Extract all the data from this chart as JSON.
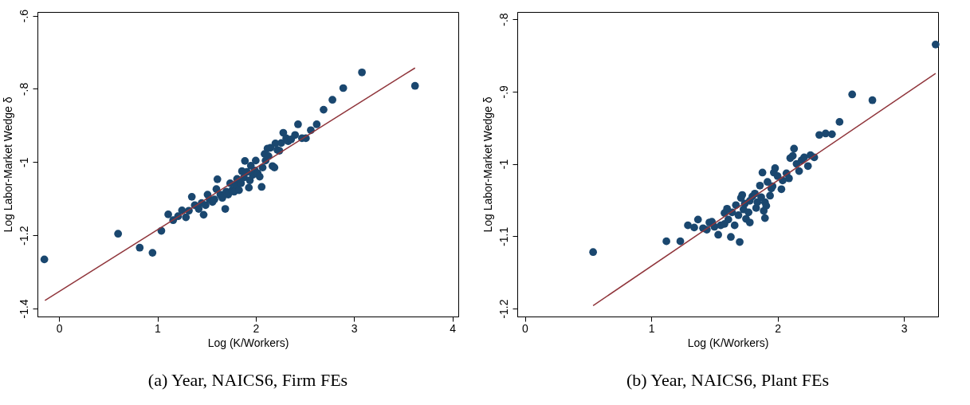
{
  "chart_data": [
    {
      "type": "scatter",
      "title": "(a) Year, NAICS6, Firm FEs",
      "xlabel": "Log (K/Workers)",
      "ylabel": "Log Labor-Market Wedge δ",
      "xlim": [
        -0.22,
        4.06
      ],
      "ylim": [
        -1.422,
        -0.59
      ],
      "xticks": [
        0,
        1,
        2,
        3,
        4
      ],
      "yticks": [
        {
          "value": -1.4,
          "label": "-1.4"
        },
        {
          "value": -1.2,
          "label": "-1.2"
        },
        {
          "value": -1,
          "label": "-1"
        },
        {
          "value": -0.8,
          "label": "-.8"
        },
        {
          "value": -0.6,
          "label": "-.6"
        }
      ],
      "grid": false,
      "series": [
        {
          "marker": "circle",
          "color": "#1a476f",
          "x": [
            -0.15,
            0.6,
            0.82,
            0.95,
            1.04,
            1.11,
            1.16,
            1.21,
            1.25,
            1.29,
            1.32,
            1.35,
            1.38,
            1.42,
            1.45,
            1.47,
            1.49,
            1.51,
            1.53,
            1.56,
            1.58,
            1.6,
            1.61,
            1.64,
            1.66,
            1.69,
            1.7,
            1.72,
            1.74,
            1.76,
            1.78,
            1.8,
            1.81,
            1.83,
            1.85,
            1.86,
            1.88,
            1.89,
            1.91,
            1.93,
            1.94,
            1.95,
            1.97,
            1.99,
            2.0,
            2.02,
            2.04,
            2.06,
            2.07,
            2.09,
            2.1,
            2.12,
            2.13,
            2.15,
            2.17,
            2.19,
            2.2,
            2.22,
            2.24,
            2.26,
            2.28,
            2.31,
            2.33,
            2.36,
            2.4,
            2.43,
            2.47,
            2.51,
            2.56,
            2.62,
            2.69,
            2.78,
            2.89,
            3.08,
            3.62
          ],
          "values": [
            -1.266,
            -1.196,
            -1.234,
            -1.248,
            -1.188,
            -1.143,
            -1.159,
            -1.148,
            -1.132,
            -1.151,
            -1.133,
            -1.095,
            -1.118,
            -1.128,
            -1.112,
            -1.144,
            -1.118,
            -1.089,
            -1.102,
            -1.109,
            -1.102,
            -1.074,
            -1.047,
            -1.089,
            -1.098,
            -1.128,
            -1.081,
            -1.089,
            -1.058,
            -1.077,
            -1.081,
            -1.062,
            -1.046,
            -1.077,
            -1.058,
            -1.025,
            -1.042,
            -0.997,
            -1.027,
            -1.07,
            -1.05,
            -1.01,
            -1.035,
            -1.023,
            -0.996,
            -1.031,
            -1.04,
            -1.068,
            -1.015,
            -0.978,
            -0.996,
            -0.963,
            -0.984,
            -0.961,
            -1.011,
            -1.015,
            -0.949,
            -0.967,
            -0.969,
            -0.948,
            -0.92,
            -0.935,
            -0.943,
            -0.938,
            -0.926,
            -0.897,
            -0.935,
            -0.935,
            -0.913,
            -0.897,
            -0.857,
            -0.83,
            -0.798,
            -0.755,
            -0.792
          ]
        },
        {
          "type": "line",
          "color": "#90353b",
          "line_style": "solid",
          "x": [
            -0.144,
            3.62
          ],
          "values": [
            -1.378,
            -0.743
          ]
        }
      ]
    },
    {
      "type": "scatter",
      "title": "(b) Year, NAICS6, Plant FEs",
      "xlabel": "Log (K/Workers)",
      "ylabel": "Log Labor-Market Wedge δ",
      "xlim": [
        -0.06,
        3.27
      ],
      "ylim": [
        -1.211,
        -0.79
      ],
      "xticks": [
        0,
        1,
        2,
        3
      ],
      "yticks": [
        {
          "value": -1.2,
          "label": "-1.2"
        },
        {
          "value": -1.1,
          "label": "-1.1"
        },
        {
          "value": -1,
          "label": "-1"
        },
        {
          "value": -0.9,
          "label": "-.9"
        },
        {
          "value": -0.8,
          "label": "-.8"
        }
      ],
      "grid": false,
      "series": [
        {
          "marker": "circle",
          "color": "#1a476f",
          "x": [
            0.54,
            1.12,
            1.23,
            1.29,
            1.34,
            1.37,
            1.41,
            1.44,
            1.46,
            1.48,
            1.5,
            1.53,
            1.55,
            1.58,
            1.58,
            1.6,
            1.61,
            1.63,
            1.64,
            1.66,
            1.67,
            1.69,
            1.7,
            1.71,
            1.72,
            1.73,
            1.74,
            1.75,
            1.77,
            1.78,
            1.78,
            1.8,
            1.82,
            1.83,
            1.84,
            1.86,
            1.87,
            1.88,
            1.89,
            1.9,
            1.9,
            1.91,
            1.92,
            1.94,
            1.95,
            1.96,
            1.97,
            1.98,
            2.0,
            2.03,
            2.04,
            2.07,
            2.09,
            2.1,
            2.12,
            2.13,
            2.15,
            2.17,
            2.19,
            2.21,
            2.24,
            2.26,
            2.29,
            2.33,
            2.38,
            2.43,
            2.49,
            2.59,
            2.75,
            3.25
          ],
          "values": [
            -1.122,
            -1.107,
            -1.107,
            -1.085,
            -1.088,
            -1.077,
            -1.089,
            -1.091,
            -1.081,
            -1.08,
            -1.087,
            -1.098,
            -1.085,
            -1.083,
            -1.068,
            -1.062,
            -1.077,
            -1.101,
            -1.067,
            -1.085,
            -1.057,
            -1.071,
            -1.108,
            -1.047,
            -1.043,
            -1.063,
            -1.055,
            -1.076,
            -1.067,
            -1.051,
            -1.081,
            -1.045,
            -1.041,
            -1.061,
            -1.053,
            -1.03,
            -1.046,
            -1.012,
            -1.065,
            -1.075,
            -1.053,
            -1.058,
            -1.025,
            -1.044,
            -1.034,
            -1.031,
            -1.012,
            -1.006,
            -1.017,
            -1.035,
            -1.023,
            -1.013,
            -1.02,
            -0.992,
            -0.989,
            -0.979,
            -1.0,
            -1.01,
            -0.995,
            -0.991,
            -1.003,
            -0.988,
            -0.991,
            -0.96,
            -0.958,
            -0.959,
            -0.942,
            -0.904,
            -0.912,
            -0.835
          ]
        },
        {
          "type": "line",
          "color": "#90353b",
          "line_style": "solid",
          "x": [
            0.54,
            3.25
          ],
          "values": [
            -1.196,
            -0.875
          ]
        }
      ]
    }
  ]
}
